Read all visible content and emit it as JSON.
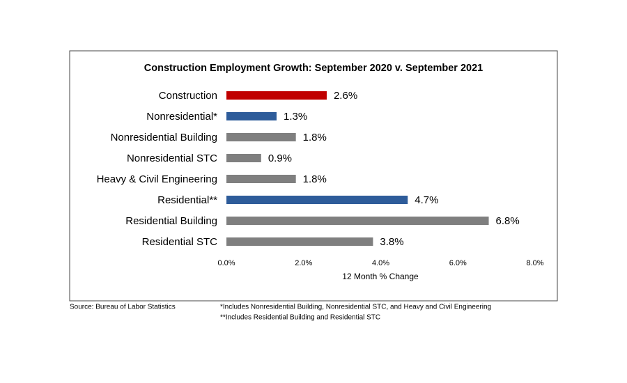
{
  "chart_data": {
    "type": "bar",
    "orientation": "horizontal",
    "title": "Construction Employment Growth: September 2020 v. September 2021",
    "categories": [
      "Construction",
      "Nonresidential*",
      "Nonresidential Building",
      "Nonresidential STC",
      "Heavy & Civil Engineering",
      "Residential**",
      "Residential Building",
      "Residential STC"
    ],
    "values": [
      2.6,
      1.3,
      1.8,
      0.9,
      1.8,
      4.7,
      6.8,
      3.8
    ],
    "value_labels": [
      "2.6%",
      "1.3%",
      "1.8%",
      "0.9%",
      "1.8%",
      "4.7%",
      "6.8%",
      "3.8%"
    ],
    "colors": [
      "#c00000",
      "#2e5c9a",
      "#7f7f7f",
      "#7f7f7f",
      "#7f7f7f",
      "#2e5c9a",
      "#7f7f7f",
      "#7f7f7f"
    ],
    "xlabel": "12 Month % Change",
    "xlim": [
      0,
      8
    ],
    "xticks": [
      {
        "value": 0,
        "label": "0.0%"
      },
      {
        "value": 2,
        "label": "2.0%"
      },
      {
        "value": 4,
        "label": "4.0%"
      },
      {
        "value": 6,
        "label": "6.0%"
      },
      {
        "value": 8,
        "label": "8.0%"
      }
    ],
    "grid": false,
    "source": "Source:  Bureau of Labor Statistics",
    "notes": [
      "*Includes Nonresidential Building, Nonresidential STC, and Heavy and Civil Engineering",
      "**Includes Residential Building and Residential STC"
    ]
  }
}
